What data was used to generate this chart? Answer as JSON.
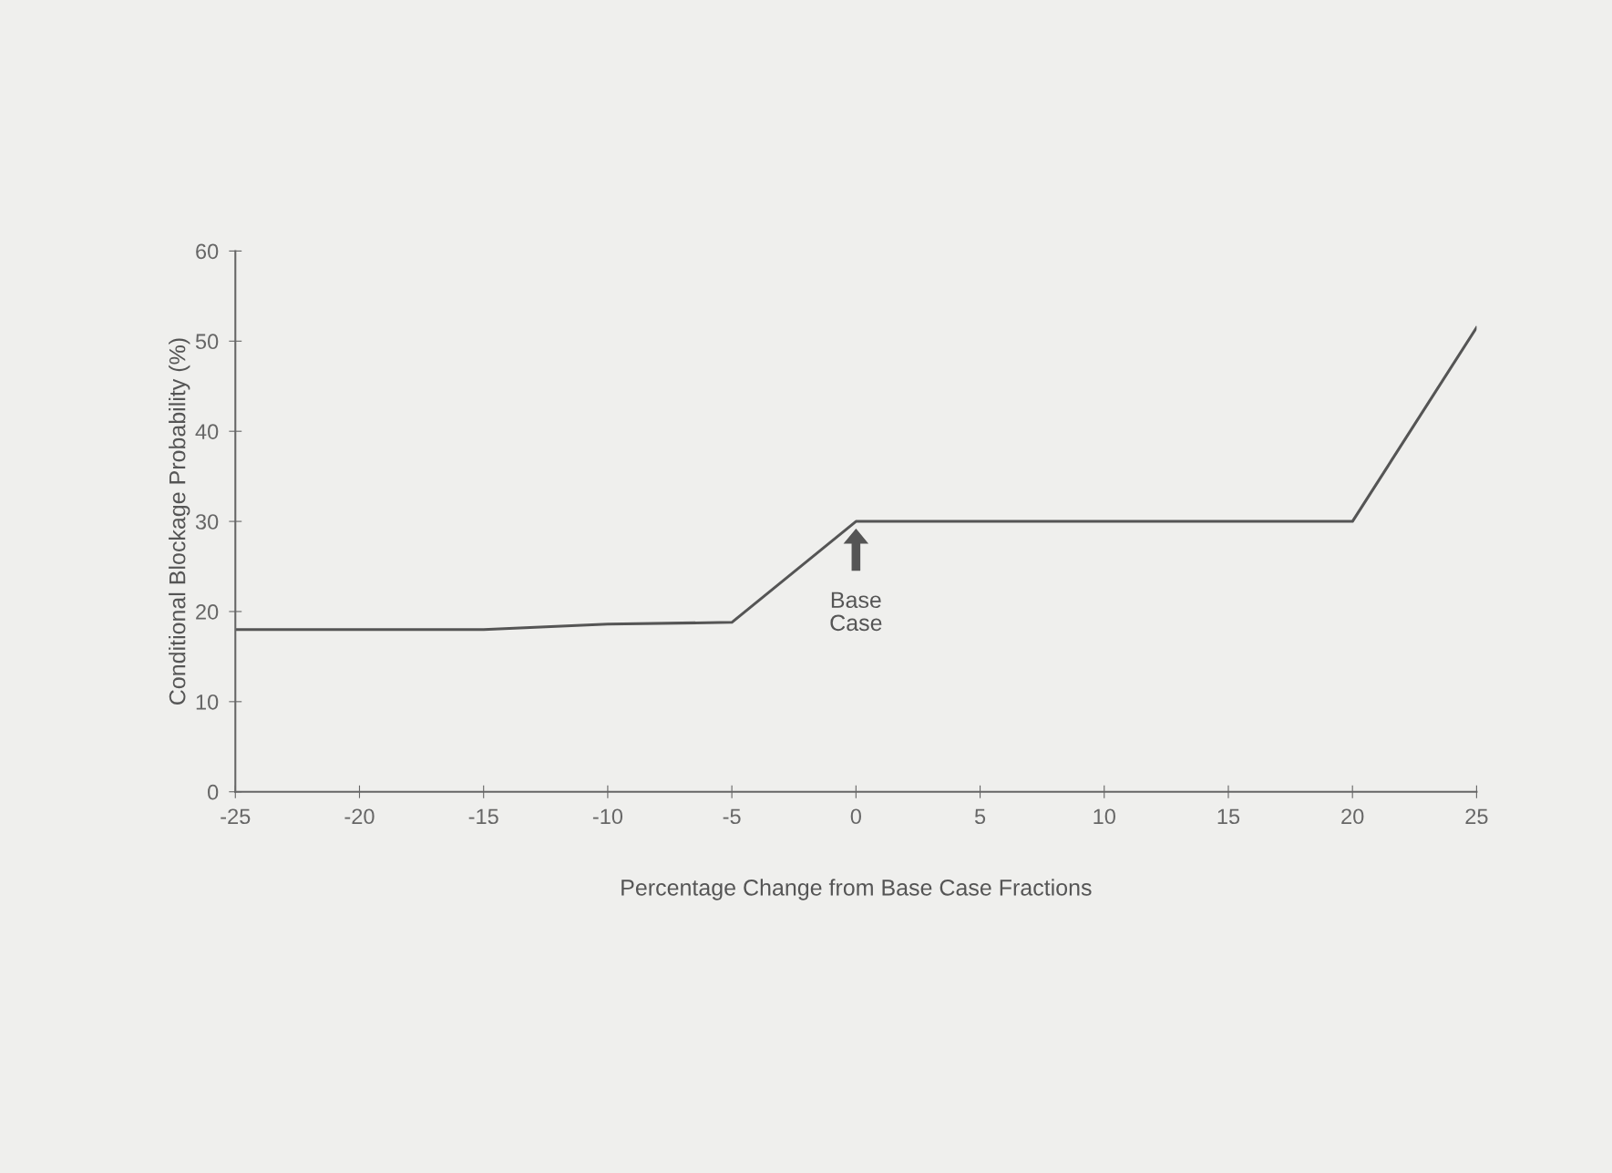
{
  "chart_data": {
    "type": "line",
    "xlabel": "Percentage Change from Base Case Fractions",
    "ylabel": "Conditional Blockage Probability (%)",
    "x": [
      -25,
      -15,
      -10,
      -5,
      0,
      20,
      25
    ],
    "series": [
      {
        "color": "#555555",
        "values": [
          18,
          18,
          18.6,
          18.8,
          30,
          30,
          51.5
        ]
      }
    ],
    "xlim": [
      -25,
      25
    ],
    "xticks": [
      -25,
      -20,
      -15,
      -10,
      -5,
      0,
      5,
      10,
      15,
      20,
      25
    ],
    "ylim": [
      0,
      60
    ],
    "yticks": [
      0,
      10,
      20,
      30,
      40,
      50,
      60
    ],
    "grid": false,
    "marker": "none",
    "line_style": "solid",
    "annotations": [
      "Base\nCase"
    ]
  }
}
